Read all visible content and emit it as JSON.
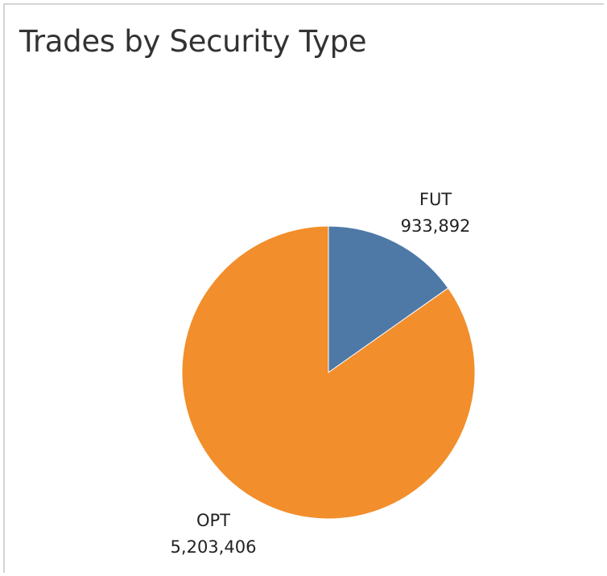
{
  "chart_data": {
    "type": "pie",
    "title": "Trades by Security Type",
    "slices": [
      {
        "label": "FUT",
        "value": 933892,
        "value_label": "933,892",
        "color": "#4e79a7"
      },
      {
        "label": "OPT",
        "value": 5203406,
        "value_label": "5,203,406",
        "color": "#f28e2b"
      }
    ],
    "legend": "none",
    "start_angle_deg": 0,
    "direction": "clockwise"
  }
}
